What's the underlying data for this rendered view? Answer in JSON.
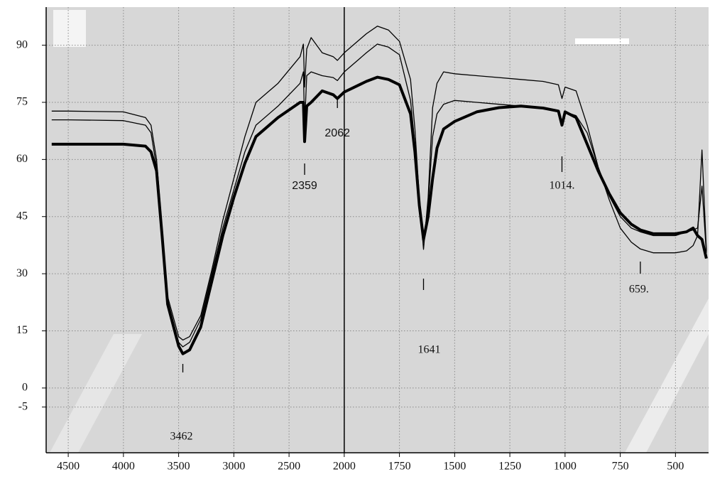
{
  "chart_data": {
    "type": "line",
    "x": [
      4650,
      4500,
      4000,
      3800,
      3750,
      3700,
      3650,
      3600,
      3500,
      3462,
      3400,
      3300,
      3200,
      3100,
      3000,
      2900,
      2800,
      2600,
      2400,
      2370,
      2359,
      2340,
      2300,
      2200,
      2100,
      2062,
      2000,
      1900,
      1850,
      1800,
      1750,
      1700,
      1680,
      1660,
      1641,
      1620,
      1600,
      1580,
      1550,
      1500,
      1400,
      1300,
      1200,
      1100,
      1030,
      1014,
      1000,
      950,
      900,
      850,
      800,
      750,
      700,
      659,
      600,
      550,
      500,
      450,
      420,
      400,
      380,
      360
    ],
    "series": [
      {
        "color": "#000000",
        "width": 4,
        "values": [
          64,
          64,
          64,
          63.5,
          62,
          57,
          40,
          22,
          11,
          9,
          10,
          16,
          28,
          40,
          50,
          59,
          66,
          71,
          75,
          75,
          64.7,
          74,
          75,
          78,
          77,
          76,
          77.7,
          80.5,
          81.6,
          81,
          79.6,
          72,
          62,
          48,
          39,
          45,
          55,
          63,
          68,
          70,
          72.5,
          73.6,
          74,
          73.5,
          72.7,
          69,
          72.5,
          71,
          64,
          57,
          51,
          46,
          43,
          41.5,
          40.5,
          40.5,
          40.5,
          41,
          42,
          40,
          39,
          34
        ]
      },
      {
        "color": "#000000",
        "width": 1.3,
        "values": [
          72.7,
          72.7,
          72.5,
          71,
          69,
          60,
          42,
          24,
          13.5,
          12.6,
          13.5,
          19,
          31,
          44,
          55,
          66,
          75,
          80,
          87,
          90.3,
          79,
          89,
          92,
          88,
          87,
          86,
          88,
          93,
          95,
          94,
          91,
          81,
          68,
          50,
          36.4,
          50,
          73.6,
          80,
          83,
          82.5,
          82,
          81.5,
          81,
          80.5,
          79.6,
          76,
          79,
          78,
          69,
          58,
          49.4,
          42,
          38.3,
          36.5,
          35.5,
          35.5,
          35.5,
          36,
          37.4,
          40,
          62.5,
          36
        ]
      },
      {
        "color": "#000000",
        "width": 1.3,
        "values": [
          70.4,
          70.4,
          70.2,
          69,
          67,
          58,
          41,
          23,
          12,
          10.8,
          12,
          18,
          30,
          42,
          52,
          62,
          69,
          74,
          80,
          83,
          69,
          82,
          83,
          82,
          81.5,
          80.7,
          83,
          88,
          90.3,
          89.5,
          87.5,
          75.5,
          64,
          48,
          38.3,
          48,
          66,
          72,
          74.5,
          75.5,
          75,
          74.5,
          74,
          73.5,
          72.7,
          69,
          72.5,
          71.5,
          67,
          58,
          50.4,
          45,
          42,
          41,
          40,
          40,
          40,
          41,
          41.5,
          42,
          53,
          35.5
        ]
      }
    ],
    "xlim": [
      4700,
      350
    ],
    "xticks": [
      4500,
      4000,
      3500,
      3000,
      2500,
      2000,
      1750,
      1500,
      1250,
      1000,
      750,
      500
    ],
    "ylim": [
      -17,
      100
    ],
    "yticks": [
      -5,
      0,
      15,
      30,
      45,
      60,
      75,
      90
    ],
    "grid": true,
    "cursor_x": 2000,
    "annotations": [
      {
        "label": "3462",
        "x": 3462
      },
      {
        "label": "2359",
        "x": 2359
      },
      {
        "label": "2062",
        "x": 2062
      },
      {
        "label": "1641",
        "x": 1641
      },
      {
        "label": "1014.",
        "x": 1014
      },
      {
        "label": "659.",
        "x": 659
      }
    ]
  }
}
